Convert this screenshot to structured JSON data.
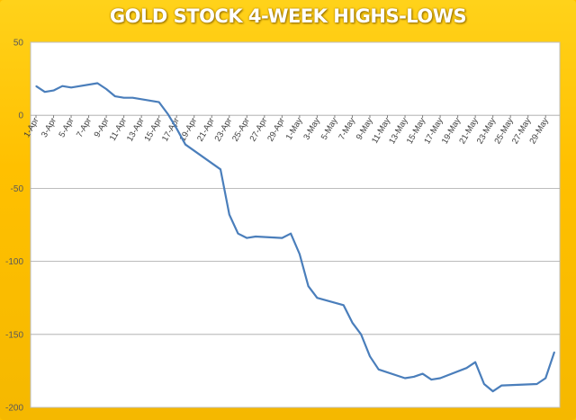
{
  "chart_data": {
    "type": "line",
    "title": "GOLD STOCK 4-WEEK HIGHS-LOWS",
    "xlabel": "",
    "ylabel": "",
    "ylim": [
      -200,
      50
    ],
    "yticks": [
      50,
      0,
      -50,
      -100,
      -150,
      -200
    ],
    "xtick_labels": [
      "1-Apr",
      "3-Apr",
      "5-Apr",
      "7-Apr",
      "9-Apr",
      "11-Apr",
      "13-Apr",
      "15-Apr",
      "17-Apr",
      "19-Apr",
      "21-Apr",
      "23-Apr",
      "25-Apr",
      "27-Apr",
      "29-Apr",
      "1-May",
      "3-May",
      "5-May",
      "7-May",
      "9-May",
      "11-May",
      "13-May",
      "15-May",
      "17-May",
      "19-May",
      "21-May",
      "23-May",
      "25-May",
      "27-May",
      "29-May"
    ],
    "grid": true,
    "legend": "none",
    "line_color": "#4a7ebb",
    "series": [
      {
        "x": [
          "1-Apr",
          "2-Apr",
          "3-Apr",
          "4-Apr",
          "5-Apr",
          "8-Apr",
          "9-Apr",
          "10-Apr",
          "11-Apr",
          "12-Apr",
          "15-Apr",
          "16-Apr",
          "17-Apr",
          "18-Apr",
          "22-Apr",
          "23-Apr",
          "24-Apr",
          "25-Apr",
          "26-Apr",
          "29-Apr",
          "30-Apr",
          "1-May",
          "2-May",
          "3-May",
          "6-May",
          "7-May",
          "8-May",
          "9-May",
          "10-May",
          "13-May",
          "14-May",
          "15-May",
          "16-May",
          "17-May",
          "20-May",
          "21-May",
          "22-May",
          "23-May",
          "24-May",
          "28-May",
          "29-May",
          "30-May"
        ],
        "values": [
          20,
          16,
          17,
          20,
          19,
          22,
          18,
          13,
          12,
          12,
          9,
          1,
          -9,
          -20,
          -37,
          -68,
          -81,
          -84,
          -83,
          -84,
          -81,
          -95,
          -117,
          -125,
          -130,
          -142,
          -150,
          -165,
          -174,
          -180,
          -179,
          -177,
          -181,
          -180,
          -173,
          -169,
          -184,
          -189,
          -185,
          -184,
          -180,
          -162
        ]
      }
    ]
  }
}
